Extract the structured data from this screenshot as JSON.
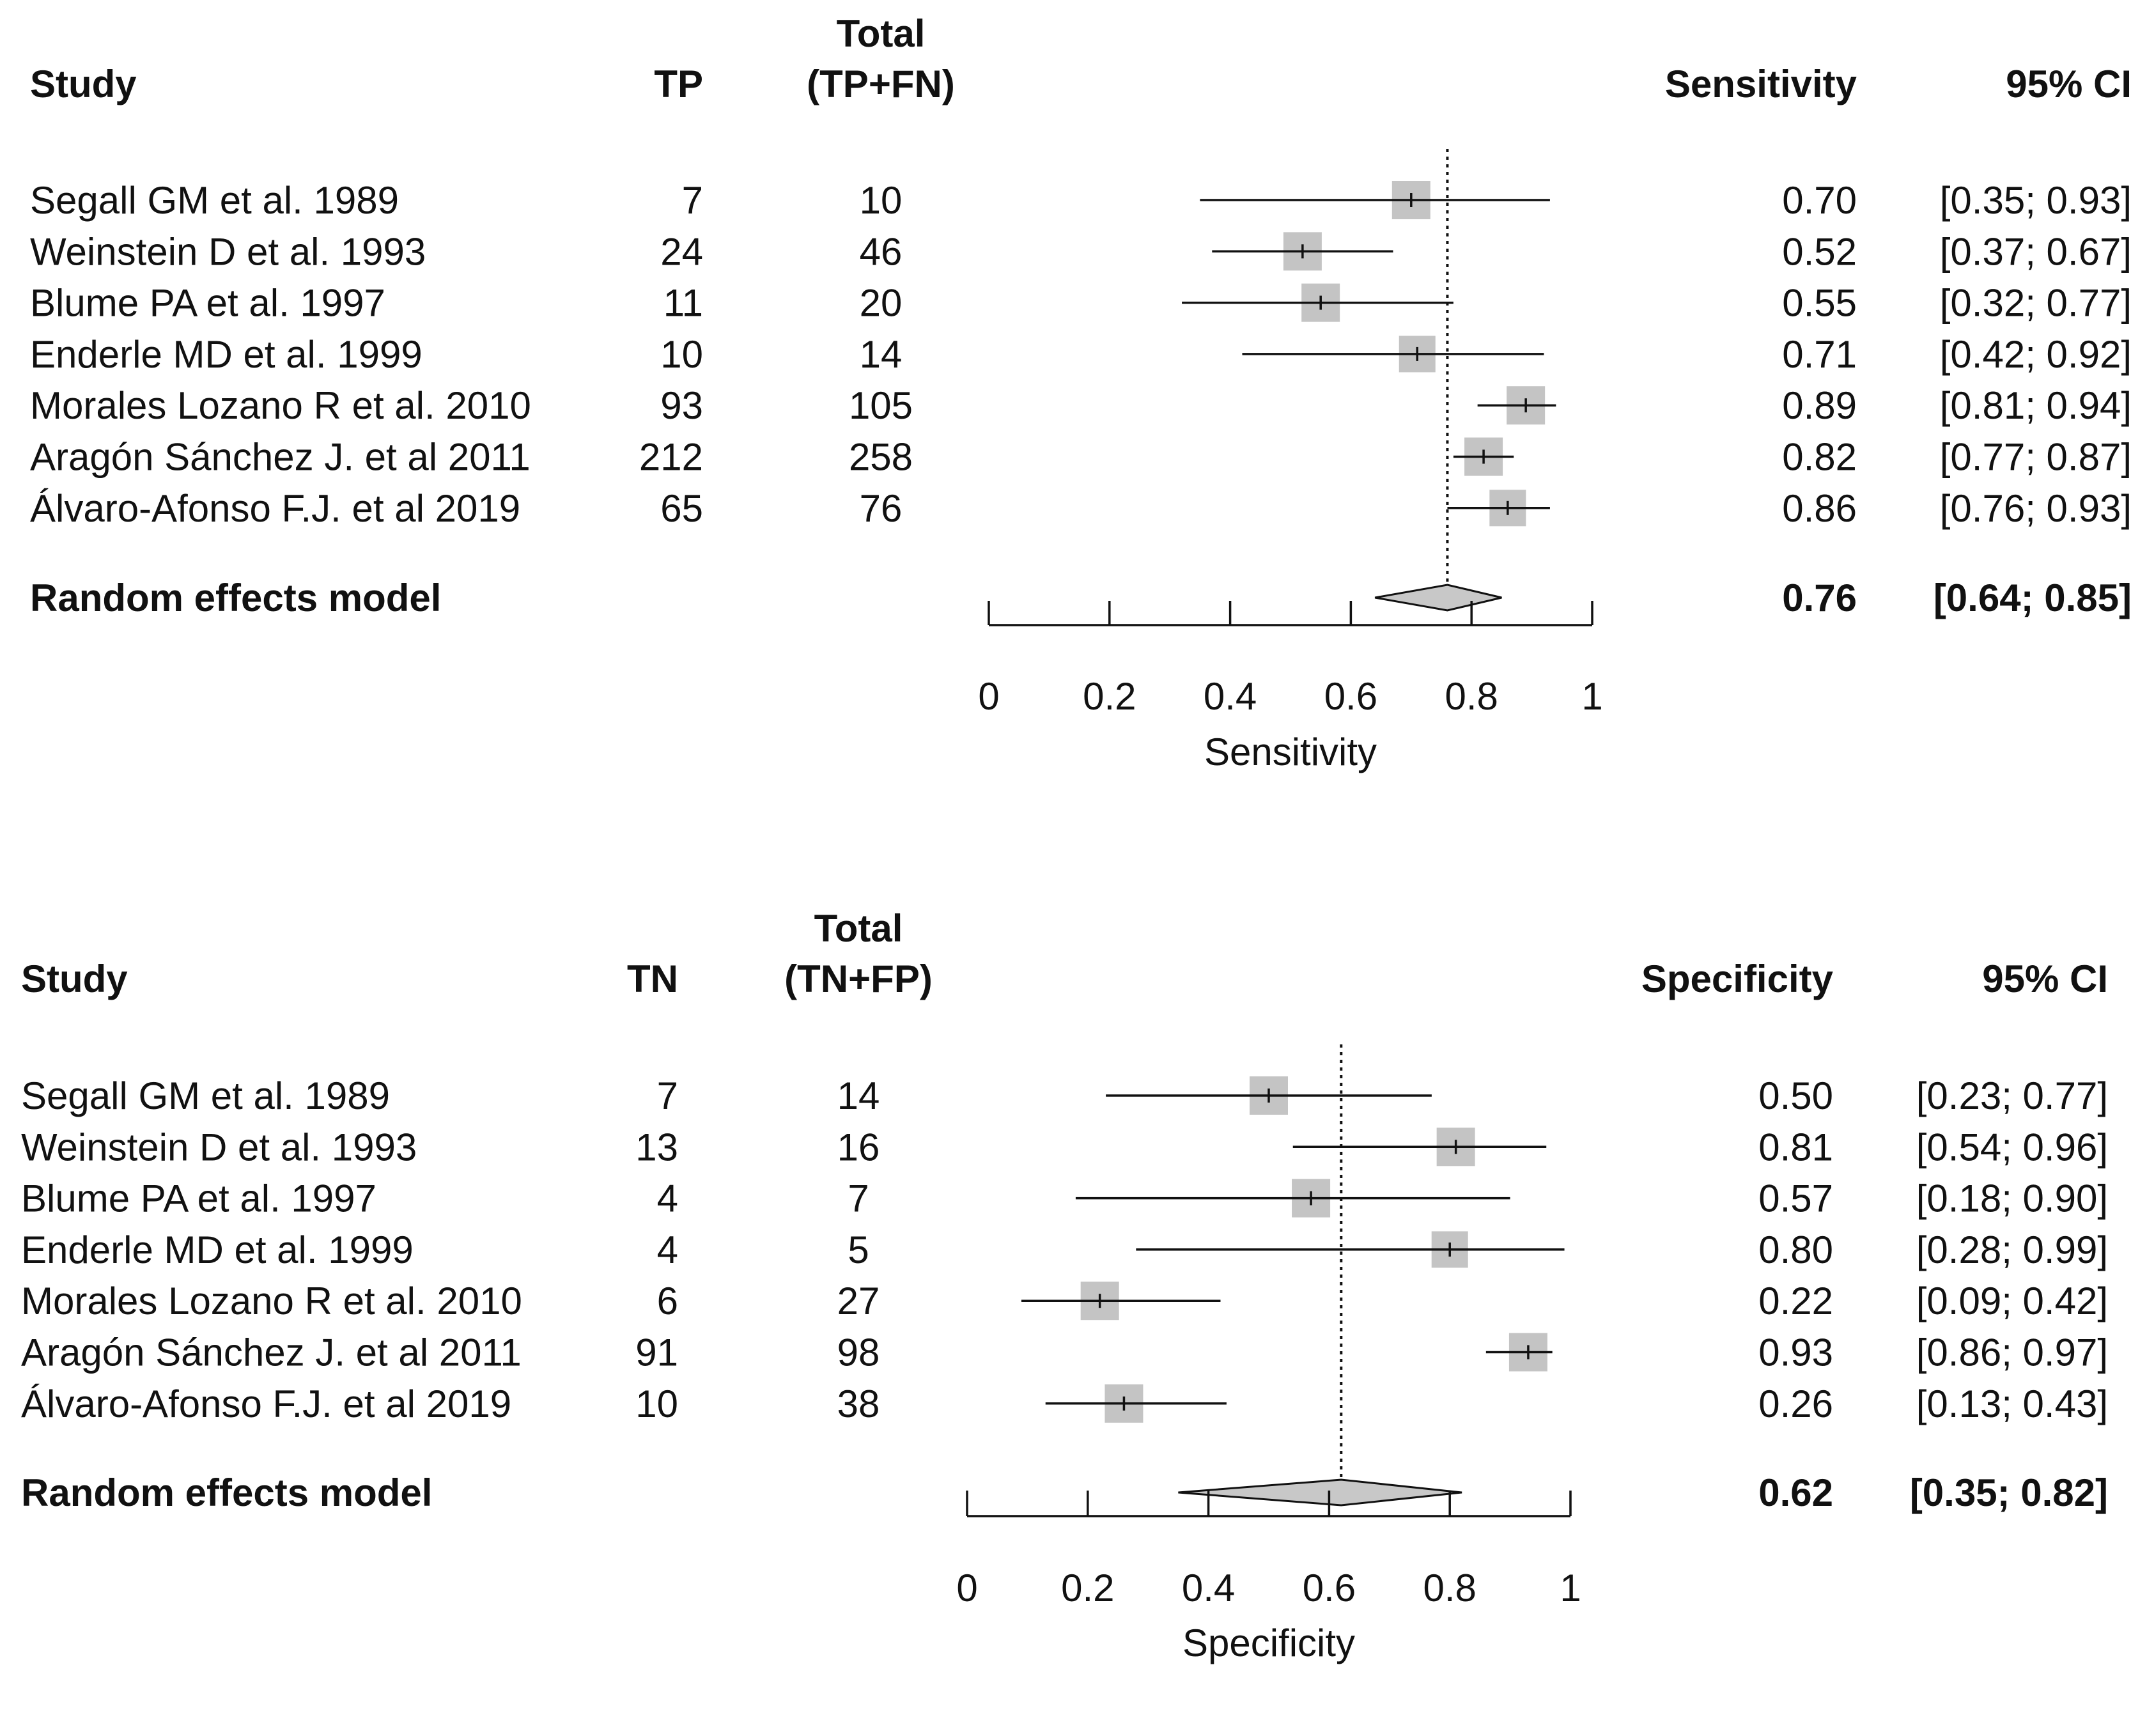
{
  "chart_data": [
    {
      "type": "forest",
      "id": "sensitivity",
      "headers": {
        "study": "Study",
        "count": "TP",
        "total_top": "Total",
        "total_bottom": "(TP+FN)",
        "estimate": "Sensitivity",
        "ci": "95% CI"
      },
      "studies": [
        {
          "study": "Segall GM et al. 1989",
          "count": "7",
          "total": "10",
          "estimate": 0.7,
          "lower": 0.35,
          "upper": 0.93,
          "estimate_text": "0.70",
          "ci_text": "[0.35; 0.93]",
          "weight": 1.0
        },
        {
          "study": "Weinstein D et al. 1993",
          "count": "24",
          "total": "46",
          "estimate": 0.52,
          "lower": 0.37,
          "upper": 0.67,
          "estimate_text": "0.52",
          "ci_text": "[0.37; 0.67]",
          "weight": 1.0
        },
        {
          "study": "Blume PA et al. 1997",
          "count": "11",
          "total": "20",
          "estimate": 0.55,
          "lower": 0.32,
          "upper": 0.77,
          "estimate_text": "0.55",
          "ci_text": "[0.32; 0.77]",
          "weight": 1.0
        },
        {
          "study": "Enderle MD et al. 1999",
          "count": "10",
          "total": "14",
          "estimate": 0.71,
          "lower": 0.42,
          "upper": 0.92,
          "estimate_text": "0.71",
          "ci_text": "[0.42; 0.92]",
          "weight": 0.95
        },
        {
          "study": "Morales Lozano R et al. 2010",
          "count": "93",
          "total": "105",
          "estimate": 0.89,
          "lower": 0.81,
          "upper": 0.94,
          "estimate_text": "0.89",
          "ci_text": "[0.81; 0.94]",
          "weight": 1.0
        },
        {
          "study": "Aragón Sánchez J. et al 2011",
          "count": "212",
          "total": "258",
          "estimate": 0.82,
          "lower": 0.77,
          "upper": 0.87,
          "estimate_text": "0.82",
          "ci_text": "[0.77; 0.87]",
          "weight": 1.0
        },
        {
          "study": "Álvaro-Afonso F.J. et al 2019",
          "count": "65",
          "total": "76",
          "estimate": 0.86,
          "lower": 0.76,
          "upper": 0.93,
          "estimate_text": "0.86",
          "ci_text": "[0.76; 0.93]",
          "weight": 0.95
        }
      ],
      "pooled": {
        "label": "Random effects model",
        "estimate": 0.76,
        "lower": 0.64,
        "upper": 0.85,
        "estimate_text": "0.76",
        "ci_text": "[0.64; 0.85]"
      },
      "x_axis": {
        "label": "Sensitivity",
        "ticks": [
          0,
          0.2,
          0.4,
          0.6,
          0.8,
          1
        ],
        "tick_labels": [
          "0",
          "0.2",
          "0.4",
          "0.6",
          "0.8",
          "1"
        ],
        "xlim": [
          0,
          1
        ]
      },
      "reference_line": 0.76
    },
    {
      "type": "forest",
      "id": "specificity",
      "headers": {
        "study": "Study",
        "count": "TN",
        "total_top": "Total",
        "total_bottom": "(TN+FP)",
        "estimate": "Specificity",
        "ci": "95% CI"
      },
      "studies": [
        {
          "study": "Segall GM et al. 1989",
          "count": "7",
          "total": "14",
          "estimate": 0.5,
          "lower": 0.23,
          "upper": 0.77,
          "estimate_text": "0.50",
          "ci_text": "[0.23; 0.77]",
          "weight": 1.0
        },
        {
          "study": "Weinstein D et al. 1993",
          "count": "13",
          "total": "16",
          "estimate": 0.81,
          "lower": 0.54,
          "upper": 0.96,
          "estimate_text": "0.81",
          "ci_text": "[0.54; 0.96]",
          "weight": 1.0
        },
        {
          "study": "Blume PA et al. 1997",
          "count": "4",
          "total": "7",
          "estimate": 0.57,
          "lower": 0.18,
          "upper": 0.9,
          "estimate_text": "0.57",
          "ci_text": "[0.18; 0.90]",
          "weight": 1.0
        },
        {
          "study": "Enderle MD et al. 1999",
          "count": "4",
          "total": "5",
          "estimate": 0.8,
          "lower": 0.28,
          "upper": 0.99,
          "estimate_text": "0.80",
          "ci_text": "[0.28; 0.99]",
          "weight": 0.95
        },
        {
          "study": "Morales Lozano R et al. 2010",
          "count": "6",
          "total": "27",
          "estimate": 0.22,
          "lower": 0.09,
          "upper": 0.42,
          "estimate_text": "0.22",
          "ci_text": "[0.09; 0.42]",
          "weight": 1.0
        },
        {
          "study": "Aragón Sánchez J. et al 2011",
          "count": "91",
          "total": "98",
          "estimate": 0.93,
          "lower": 0.86,
          "upper": 0.97,
          "estimate_text": "0.93",
          "ci_text": "[0.86; 0.97]",
          "weight": 1.0
        },
        {
          "study": "Álvaro-Afonso F.J. et al 2019",
          "count": "10",
          "total": "38",
          "estimate": 0.26,
          "lower": 0.13,
          "upper": 0.43,
          "estimate_text": "0.26",
          "ci_text": "[0.13; 0.43]",
          "weight": 1.0
        }
      ],
      "pooled": {
        "label": "Random effects model",
        "estimate": 0.62,
        "lower": 0.35,
        "upper": 0.82,
        "estimate_text": "0.62",
        "ci_text": "[0.35; 0.82]"
      },
      "x_axis": {
        "label": "Specificity",
        "ticks": [
          0,
          0.2,
          0.4,
          0.6,
          0.8,
          1
        ],
        "tick_labels": [
          "0",
          "0.2",
          "0.4",
          "0.6",
          "0.8",
          "1"
        ],
        "xlim": [
          0,
          1
        ]
      },
      "reference_line": 0.62
    }
  ],
  "colors": {
    "text": "#111111",
    "box": "#c4c4c4",
    "diamond": "#c8c8c8",
    "line": "#111111"
  }
}
